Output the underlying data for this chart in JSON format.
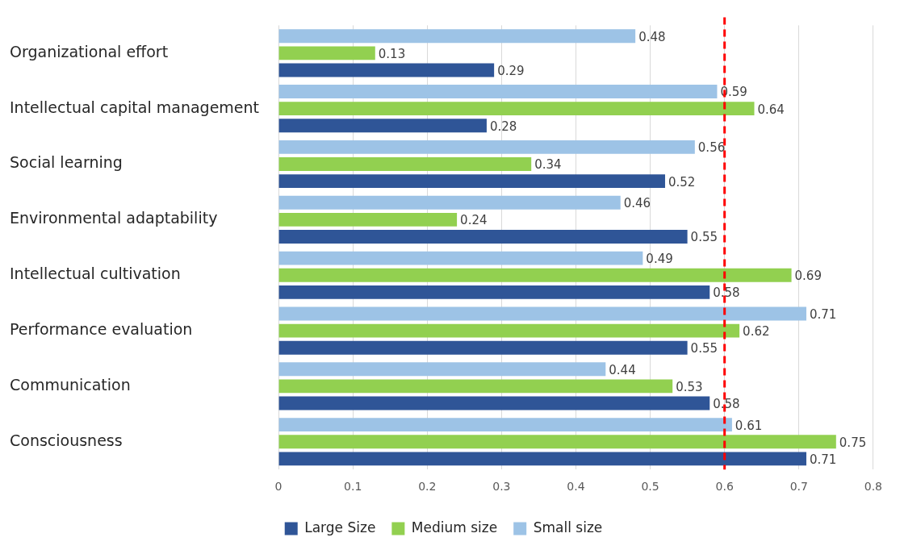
{
  "chart_data": {
    "type": "bar",
    "orientation": "horizontal",
    "categories": [
      "Organizational effort",
      "Intellectual capital management",
      "Social learning",
      "Environmental adaptability",
      "Intellectual cultivation",
      "Performance evaluation",
      "Communication",
      "Consciousness"
    ],
    "series": [
      {
        "name": "Large Size",
        "color": "#2f5597",
        "values": [
          0.29,
          0.28,
          0.52,
          0.55,
          0.58,
          0.55,
          0.58,
          0.71
        ]
      },
      {
        "name": "Medium size",
        "color": "#92d050",
        "values": [
          0.13,
          0.64,
          0.34,
          0.24,
          0.69,
          0.62,
          0.53,
          0.75
        ]
      },
      {
        "name": "Small size",
        "color": "#9dc3e6",
        "values": [
          0.48,
          0.59,
          0.56,
          0.46,
          0.49,
          0.71,
          0.44,
          0.61
        ]
      }
    ],
    "xlim": [
      0,
      0.8
    ],
    "xticks": [
      0,
      0.1,
      0.2,
      0.3,
      0.4,
      0.5,
      0.6,
      0.7,
      0.8
    ],
    "grid": "x",
    "legend": "bottom",
    "data_labels": true,
    "ref_lines": [
      {
        "axis": "x",
        "value": 0.6,
        "color": "#ff0000",
        "line_style": "dashed"
      }
    ]
  }
}
